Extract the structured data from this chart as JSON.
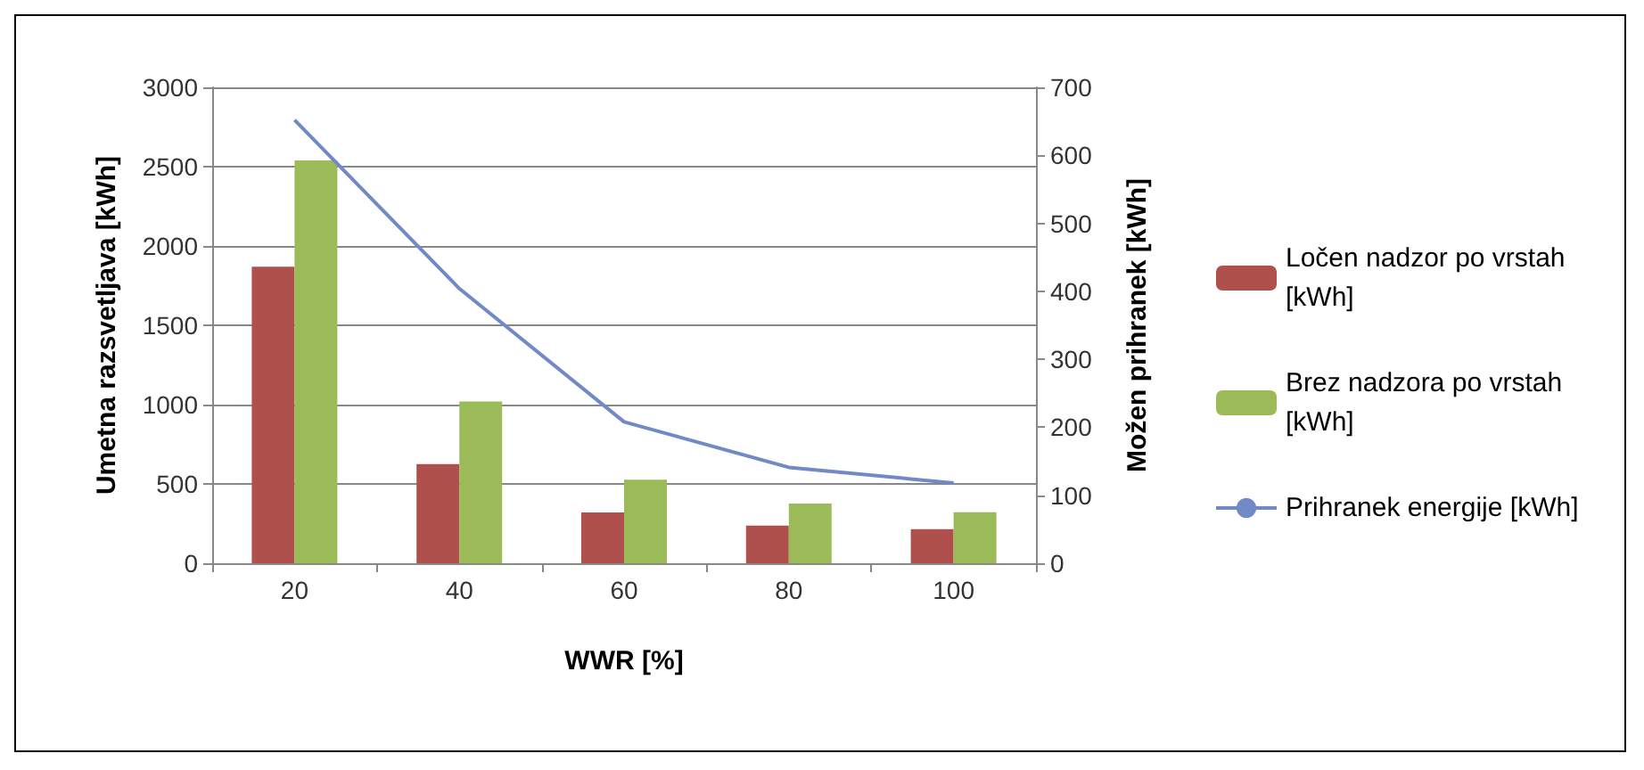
{
  "chart_data": {
    "type": "bar",
    "xlabel": "WWR [%]",
    "ylabel": "Umetna razsvetljava [kWh]",
    "y2label": "Možen prihranek [kWh]",
    "categories": [
      "20",
      "40",
      "60",
      "80",
      "100"
    ],
    "series": [
      {
        "name": "Ločen nadzor po vrstah [kWh]",
        "color": "#b0504d",
        "values": [
          1870,
          625,
          320,
          237,
          215
        ]
      },
      {
        "name": "Brez nadzora po vrstah [kWh]",
        "color": "#9bbb59",
        "values": [
          2540,
          1020,
          527,
          376,
          322
        ]
      },
      {
        "name": "Prihranek energije [kWh]",
        "type": "line",
        "axis": "y2",
        "color": "#7189c4",
        "values": [
          652,
          404,
          208,
          141,
          118
        ]
      }
    ],
    "ylim": [
      0,
      3000
    ],
    "yticks": [
      0,
      500,
      1000,
      1500,
      2000,
      2500,
      3000
    ],
    "y2lim": [
      0,
      700
    ],
    "y2ticks": [
      0,
      100,
      200,
      300,
      400,
      500,
      600,
      700
    ],
    "grid": "y",
    "legend": "right",
    "marker": "none"
  }
}
